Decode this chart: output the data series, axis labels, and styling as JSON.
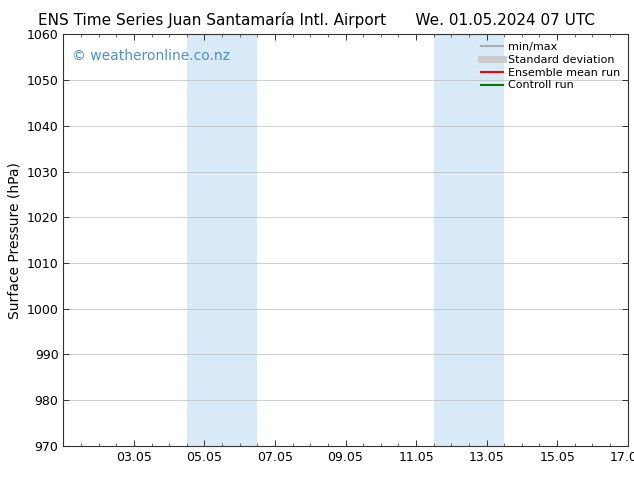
{
  "title_left": "ENS Time Series Juan Santamaría Intl. Airport",
  "title_right": "We. 01.05.2024 07 UTC",
  "ylabel": "Surface Pressure (hPa)",
  "ylim": [
    970,
    1060
  ],
  "yticks": [
    970,
    980,
    990,
    1000,
    1010,
    1020,
    1030,
    1040,
    1050,
    1060
  ],
  "xlim": [
    0,
    16
  ],
  "xtick_labels": [
    "03.05",
    "05.05",
    "07.05",
    "09.05",
    "11.05",
    "13.05",
    "15.05",
    "17.05"
  ],
  "xtick_positions": [
    2,
    4,
    6,
    8,
    10,
    12,
    14,
    16
  ],
  "shaded_bands": [
    {
      "x_start": 3.5,
      "x_end": 4.5,
      "color": "#d8eaf8"
    },
    {
      "x_start": 4.5,
      "x_end": 5.5,
      "color": "#d8eaf8"
    },
    {
      "x_start": 10.5,
      "x_end": 11.5,
      "color": "#d8eaf8"
    },
    {
      "x_start": 11.5,
      "x_end": 12.5,
      "color": "#d8eaf8"
    }
  ],
  "watermark_text": "© weatheronline.co.nz",
  "watermark_color": "#4a90d9",
  "watermark_fontsize": 10,
  "bg_color": "#ffffff",
  "grid_color": "#bbbbbb",
  "legend_items": [
    {
      "label": "min/max",
      "color": "#aaaaaa",
      "lw": 1.5,
      "style": "solid"
    },
    {
      "label": "Standard deviation",
      "color": "#cccccc",
      "lw": 5,
      "style": "solid"
    },
    {
      "label": "Ensemble mean run",
      "color": "#ff0000",
      "lw": 1.5,
      "style": "solid"
    },
    {
      "label": "Controll run",
      "color": "#008000",
      "lw": 1.5,
      "style": "solid"
    }
  ],
  "font_family": "DejaVu Sans",
  "title_fontsize": 11,
  "axis_fontsize": 9,
  "ylabel_fontsize": 10
}
